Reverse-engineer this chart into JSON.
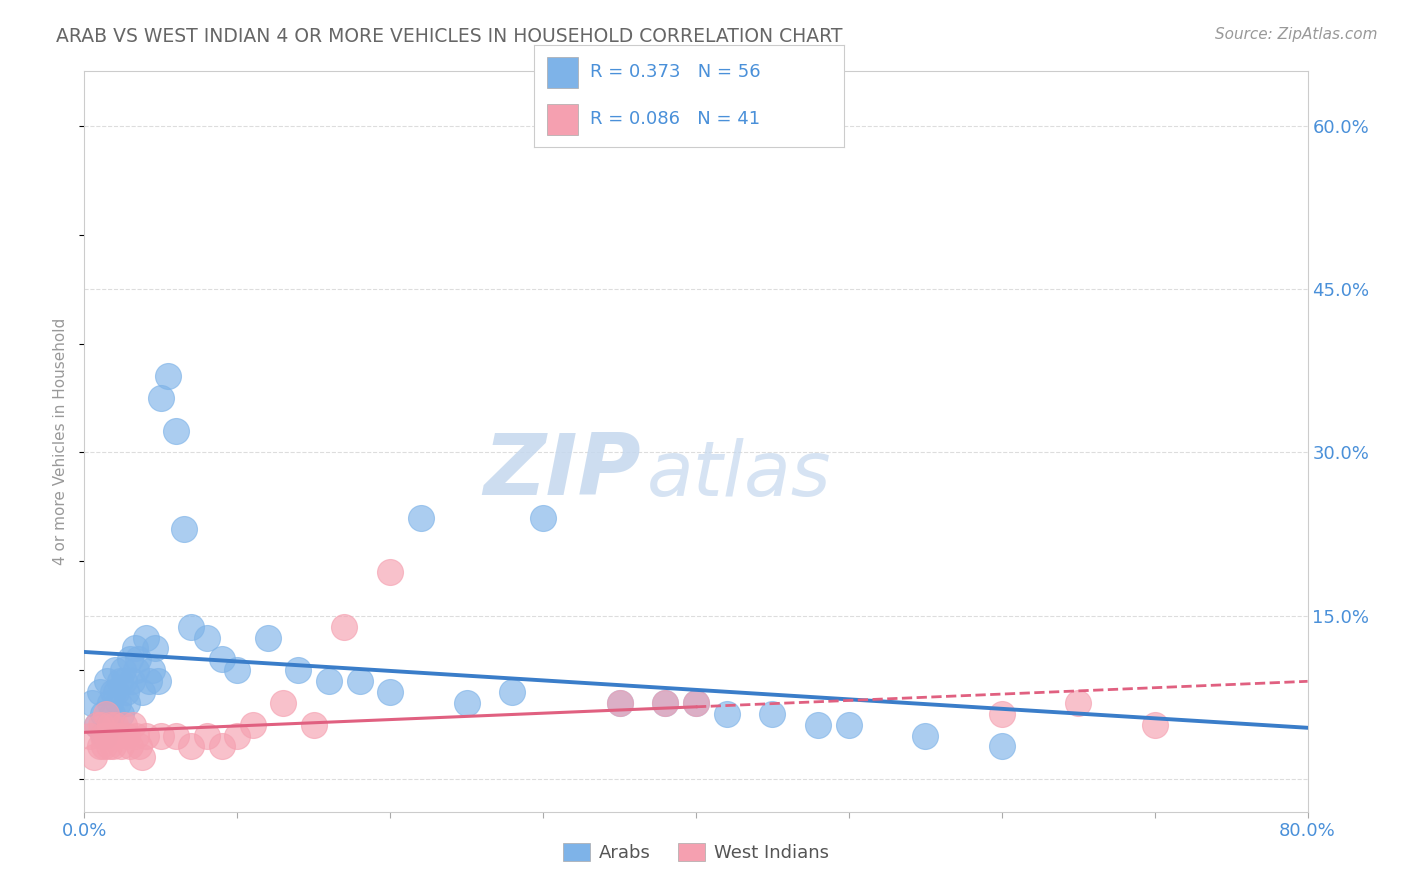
{
  "title": "ARAB VS WEST INDIAN 4 OR MORE VEHICLES IN HOUSEHOLD CORRELATION CHART",
  "source": "Source: ZipAtlas.com",
  "ylabel": "4 or more Vehicles in Household",
  "xlim": [
    0.0,
    0.8
  ],
  "ylim": [
    -0.03,
    0.65
  ],
  "xticks": [
    0.0,
    0.1,
    0.2,
    0.3,
    0.4,
    0.5,
    0.6,
    0.7,
    0.8
  ],
  "xticklabels": [
    "0.0%",
    "",
    "",
    "",
    "",
    "",
    "",
    "",
    "80.0%"
  ],
  "ytick_positions": [
    0.0,
    0.15,
    0.3,
    0.45,
    0.6
  ],
  "ytick_labels": [
    "",
    "15.0%",
    "30.0%",
    "45.0%",
    "60.0%"
  ],
  "arab_color": "#7EB3E8",
  "arab_line_color": "#3A7DC9",
  "west_indian_color": "#F5A0B0",
  "west_indian_line_color": "#E06080",
  "arab_R": 0.373,
  "arab_N": 56,
  "west_indian_R": 0.086,
  "west_indian_N": 41,
  "watermark_zip": "ZIP",
  "watermark_atlas": "atlas",
  "legend_arab": "Arabs",
  "legend_west_indian": "West Indians",
  "arab_scatter_x": [
    0.005,
    0.008,
    0.01,
    0.012,
    0.013,
    0.015,
    0.016,
    0.017,
    0.018,
    0.019,
    0.02,
    0.021,
    0.022,
    0.023,
    0.024,
    0.025,
    0.026,
    0.027,
    0.028,
    0.03,
    0.031,
    0.033,
    0.034,
    0.035,
    0.038,
    0.04,
    0.042,
    0.044,
    0.046,
    0.048,
    0.05,
    0.055,
    0.06,
    0.065,
    0.07,
    0.08,
    0.09,
    0.1,
    0.12,
    0.14,
    0.16,
    0.18,
    0.2,
    0.22,
    0.25,
    0.28,
    0.3,
    0.35,
    0.38,
    0.4,
    0.42,
    0.45,
    0.48,
    0.5,
    0.55,
    0.6
  ],
  "arab_scatter_y": [
    0.07,
    0.05,
    0.08,
    0.06,
    0.04,
    0.09,
    0.05,
    0.07,
    0.06,
    0.08,
    0.1,
    0.08,
    0.07,
    0.09,
    0.06,
    0.1,
    0.09,
    0.08,
    0.07,
    0.11,
    0.09,
    0.12,
    0.1,
    0.11,
    0.08,
    0.13,
    0.09,
    0.1,
    0.12,
    0.09,
    0.35,
    0.37,
    0.32,
    0.23,
    0.14,
    0.13,
    0.11,
    0.1,
    0.13,
    0.1,
    0.09,
    0.09,
    0.08,
    0.24,
    0.07,
    0.08,
    0.24,
    0.07,
    0.07,
    0.07,
    0.06,
    0.06,
    0.05,
    0.05,
    0.04,
    0.03
  ],
  "west_indian_scatter_x": [
    0.004,
    0.006,
    0.008,
    0.01,
    0.011,
    0.012,
    0.013,
    0.014,
    0.015,
    0.016,
    0.017,
    0.018,
    0.019,
    0.02,
    0.022,
    0.024,
    0.026,
    0.028,
    0.03,
    0.032,
    0.034,
    0.036,
    0.038,
    0.04,
    0.05,
    0.06,
    0.07,
    0.08,
    0.09,
    0.1,
    0.11,
    0.13,
    0.15,
    0.17,
    0.2,
    0.35,
    0.38,
    0.4,
    0.6,
    0.65,
    0.7
  ],
  "west_indian_scatter_y": [
    0.04,
    0.02,
    0.05,
    0.03,
    0.05,
    0.04,
    0.03,
    0.06,
    0.04,
    0.03,
    0.05,
    0.04,
    0.03,
    0.05,
    0.04,
    0.03,
    0.05,
    0.04,
    0.03,
    0.05,
    0.04,
    0.03,
    0.02,
    0.04,
    0.04,
    0.04,
    0.03,
    0.04,
    0.03,
    0.04,
    0.05,
    0.07,
    0.05,
    0.14,
    0.19,
    0.07,
    0.07,
    0.07,
    0.06,
    0.07,
    0.05
  ],
  "background_color": "#FFFFFF",
  "grid_color": "#CCCCCC",
  "text_color_blue": "#4A90D9",
  "title_color": "#666666"
}
